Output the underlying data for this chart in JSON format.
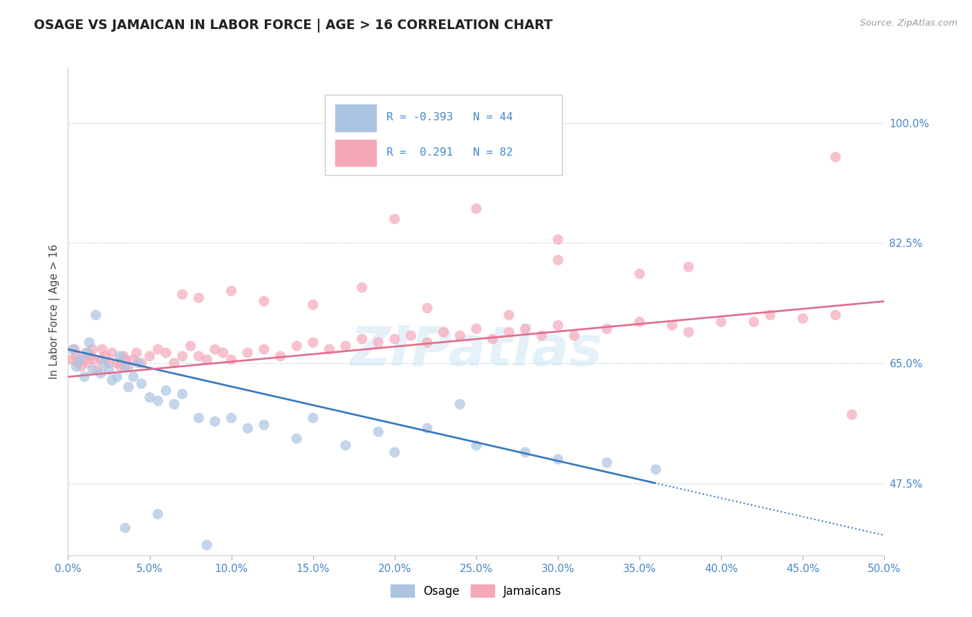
{
  "title": "OSAGE VS JAMAICAN IN LABOR FORCE | AGE > 16 CORRELATION CHART",
  "source_text": "Source: ZipAtlas.com",
  "ylabel": "In Labor Force | Age > 16",
  "xlim": [
    0.0,
    50.0
  ],
  "ylim": [
    37.0,
    108.0
  ],
  "yticks": [
    47.5,
    65.0,
    82.5,
    100.0
  ],
  "xticks": [
    0.0,
    5.0,
    10.0,
    15.0,
    20.0,
    25.0,
    30.0,
    35.0,
    40.0,
    45.0,
    50.0
  ],
  "osage_color": "#aac4e2",
  "jamaican_color": "#f5a8b8",
  "osage_line_color": "#3a7abf",
  "jamaican_line_color": "#e07090",
  "R_osage": -0.393,
  "N_osage": 44,
  "R_jamaican": 0.291,
  "N_jamaican": 82,
  "osage_x": [
    0.3,
    0.5,
    0.7,
    1.0,
    1.2,
    1.3,
    1.5,
    1.7,
    2.0,
    2.2,
    2.5,
    2.7,
    3.0,
    3.2,
    3.5,
    3.7,
    4.0,
    4.3,
    4.5,
    5.0,
    5.5,
    6.0,
    6.5,
    7.0,
    8.0,
    9.0,
    10.0,
    11.0,
    12.0,
    14.0,
    15.0,
    17.0,
    19.0,
    20.0,
    22.0,
    25.0,
    28.0,
    30.0,
    33.0,
    36.0,
    5.5,
    3.5,
    8.5,
    24.0
  ],
  "osage_y": [
    67.0,
    64.5,
    65.5,
    63.0,
    66.5,
    68.0,
    64.0,
    72.0,
    63.5,
    65.0,
    64.0,
    62.5,
    63.0,
    66.0,
    64.5,
    61.5,
    63.0,
    65.0,
    62.0,
    60.0,
    59.5,
    61.0,
    59.0,
    60.5,
    57.0,
    56.5,
    57.0,
    55.5,
    56.0,
    54.0,
    57.0,
    53.0,
    55.0,
    52.0,
    55.5,
    53.0,
    52.0,
    51.0,
    50.5,
    49.5,
    43.0,
    41.0,
    38.5,
    59.0
  ],
  "jamaican_x": [
    0.2,
    0.4,
    0.5,
    0.6,
    0.8,
    1.0,
    1.1,
    1.2,
    1.4,
    1.5,
    1.6,
    1.8,
    2.0,
    2.1,
    2.3,
    2.5,
    2.7,
    3.0,
    3.2,
    3.4,
    3.5,
    3.7,
    4.0,
    4.2,
    4.5,
    5.0,
    5.5,
    6.0,
    6.5,
    7.0,
    7.5,
    8.0,
    8.5,
    9.0,
    9.5,
    10.0,
    11.0,
    12.0,
    13.0,
    14.0,
    15.0,
    16.0,
    17.0,
    18.0,
    19.0,
    20.0,
    21.0,
    22.0,
    23.0,
    24.0,
    25.0,
    26.0,
    27.0,
    28.0,
    29.0,
    30.0,
    31.0,
    33.0,
    35.0,
    37.0,
    38.0,
    40.0,
    43.0,
    45.0,
    47.0,
    7.0,
    8.0,
    10.0,
    12.0,
    15.0,
    18.0,
    22.0,
    27.0,
    30.0,
    35.0,
    38.0,
    42.0,
    20.0,
    25.0,
    30.0,
    47.0,
    48.0
  ],
  "jamaican_y": [
    65.5,
    67.0,
    66.0,
    65.0,
    64.5,
    65.5,
    66.5,
    65.0,
    66.0,
    67.0,
    65.5,
    64.0,
    65.5,
    67.0,
    66.0,
    65.0,
    66.5,
    65.0,
    64.5,
    66.0,
    65.5,
    64.5,
    65.5,
    66.5,
    65.0,
    66.0,
    67.0,
    66.5,
    65.0,
    66.0,
    67.5,
    66.0,
    65.5,
    67.0,
    66.5,
    65.5,
    66.5,
    67.0,
    66.0,
    67.5,
    68.0,
    67.0,
    67.5,
    68.5,
    68.0,
    68.5,
    69.0,
    68.0,
    69.5,
    69.0,
    70.0,
    68.5,
    69.5,
    70.0,
    69.0,
    70.5,
    69.0,
    70.0,
    71.0,
    70.5,
    69.5,
    71.0,
    72.0,
    71.5,
    72.0,
    75.0,
    74.5,
    75.5,
    74.0,
    73.5,
    76.0,
    73.0,
    72.0,
    80.0,
    78.0,
    79.0,
    71.0,
    86.0,
    87.5,
    83.0,
    95.0,
    57.5
  ]
}
